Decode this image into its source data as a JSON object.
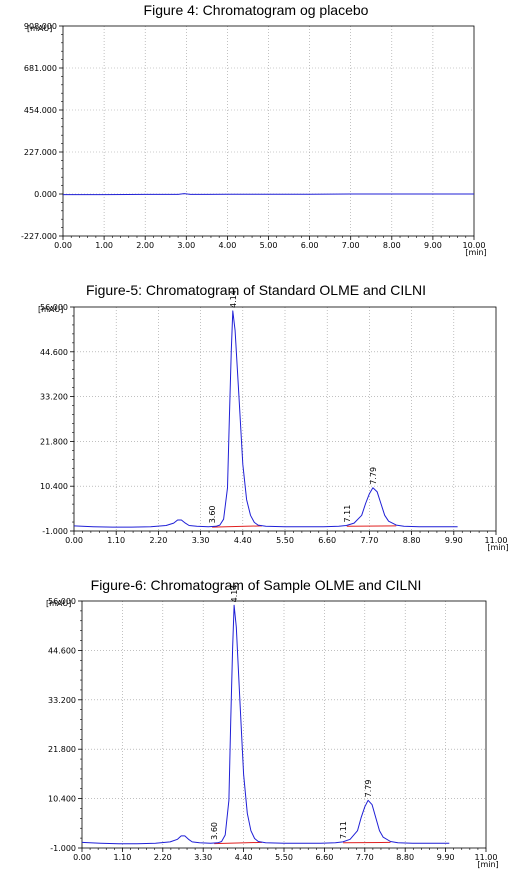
{
  "chart_data": [
    {
      "type": "line",
      "title": "Figure 4: Chromatogram og placebo",
      "y_unit": "[mAU]",
      "x_unit": "[min]",
      "ylim": [
        -227.0,
        908.0
      ],
      "xlim": [
        0.0,
        10.0
      ],
      "yticks": [
        "908.000",
        "681.000",
        "454.000",
        "227.000",
        "0.000",
        "-227.000"
      ],
      "yticks_values": [
        908,
        681,
        454,
        227,
        0,
        -227
      ],
      "xticks": [
        "0.00",
        "1.00",
        "2.00",
        "3.00",
        "4.00",
        "5.00",
        "6.00",
        "7.00",
        "8.00",
        "9.00",
        "10.00"
      ],
      "xticks_values": [
        0,
        1,
        2,
        3,
        4,
        5,
        6,
        7,
        8,
        9,
        10
      ],
      "grid": true,
      "series": [
        {
          "color": "#1f1fd6",
          "x": [
            0.0,
            1.0,
            2.0,
            2.8,
            2.95,
            3.1,
            3.5,
            4.0,
            5.0,
            6.0,
            7.0,
            8.0,
            9.0,
            10.0
          ],
          "y": [
            -3,
            -3,
            -2,
            -2,
            2,
            -2,
            -2,
            -1,
            -1,
            -1,
            0,
            0,
            0,
            0
          ]
        }
      ],
      "peaks": []
    },
    {
      "type": "line",
      "title": "Figure-5: Chromatogram of Standard OLME and CILNI",
      "y_unit": "[mAU]",
      "x_unit": "[min]",
      "ylim": [
        -1.0,
        56.0
      ],
      "xlim": [
        0.0,
        11.0
      ],
      "yticks": [
        "56.000",
        "44.600",
        "33.200",
        "21.800",
        "10.400",
        "-1.000"
      ],
      "yticks_values": [
        56,
        44.6,
        33.2,
        21.8,
        10.4,
        -1.0
      ],
      "xticks": [
        "0.00",
        "1.10",
        "2.20",
        "3.30",
        "4.40",
        "5.50",
        "6.60",
        "7.70",
        "8.80",
        "9.90",
        "11.00"
      ],
      "xticks_values": [
        0,
        1.1,
        2.2,
        3.3,
        4.4,
        5.5,
        6.6,
        7.7,
        8.8,
        9.9,
        11
      ],
      "grid": true,
      "series": [
        {
          "color": "#1f1fd6",
          "x": [
            0.0,
            0.5,
            1.0,
            1.5,
            2.0,
            2.4,
            2.6,
            2.7,
            2.8,
            2.9,
            3.0,
            3.2,
            3.5,
            3.7,
            3.8,
            3.9,
            4.0,
            4.05,
            4.1,
            4.14,
            4.2,
            4.3,
            4.4,
            4.5,
            4.6,
            4.7,
            4.8,
            5.0,
            5.5,
            6.0,
            6.5,
            6.9,
            7.1,
            7.3,
            7.5,
            7.6,
            7.7,
            7.79,
            7.9,
            8.0,
            8.1,
            8.2,
            8.4,
            8.6,
            9.0,
            9.5,
            10.0
          ],
          "y": [
            0.3,
            0.1,
            0.0,
            0.0,
            0.1,
            0.4,
            1.0,
            1.8,
            1.8,
            1.0,
            0.4,
            0.2,
            0.1,
            0.2,
            0.5,
            2.0,
            10.0,
            28.0,
            45.0,
            55.0,
            50.0,
            33.0,
            16.0,
            7.0,
            3.0,
            1.2,
            0.5,
            0.2,
            0.1,
            0.1,
            0.1,
            0.2,
            0.4,
            1.0,
            3.0,
            6.0,
            8.5,
            10.0,
            9.0,
            6.0,
            3.0,
            1.5,
            0.5,
            0.2,
            0.1,
            0.1,
            0.1
          ]
        }
      ],
      "baselines": [
        {
          "color": "#e02020",
          "x": [
            3.6,
            4.9
          ],
          "y": [
            0.0,
            0.3
          ]
        },
        {
          "color": "#e02020",
          "x": [
            7.11,
            8.4
          ],
          "y": [
            0.2,
            0.3
          ]
        }
      ],
      "peaks": [
        {
          "label": "4.14",
          "x": 4.14,
          "y": 55.0
        },
        {
          "label": "7.79",
          "x": 7.79,
          "y": 10.0
        },
        {
          "label": "3.60",
          "x": 3.6,
          "y": 0.2
        },
        {
          "label": "7.11",
          "x": 7.11,
          "y": 0.4
        }
      ]
    },
    {
      "type": "line",
      "title": "Figure-6: Chromatogram of Sample OLME and CILNI",
      "y_unit": "[mAU]",
      "x_unit": "[min]",
      "ylim": [
        -1.0,
        56.0
      ],
      "xlim": [
        0.0,
        11.0
      ],
      "yticks": [
        "56.000",
        "44.600",
        "33.200",
        "21.800",
        "10.400",
        "-1.000"
      ],
      "yticks_values": [
        56,
        44.6,
        33.2,
        21.8,
        10.4,
        -1.0
      ],
      "xticks": [
        "0.00",
        "1.10",
        "2.20",
        "3.30",
        "4.40",
        "5.50",
        "6.60",
        "7.70",
        "8.80",
        "9.90",
        "11.00"
      ],
      "xticks_values": [
        0,
        1.1,
        2.2,
        3.3,
        4.4,
        5.5,
        6.6,
        7.7,
        8.8,
        9.9,
        11
      ],
      "grid": true,
      "series": [
        {
          "color": "#1f1fd6",
          "x": [
            0.0,
            0.5,
            1.0,
            1.5,
            2.0,
            2.4,
            2.6,
            2.7,
            2.8,
            2.9,
            3.0,
            3.2,
            3.5,
            3.7,
            3.8,
            3.9,
            4.0,
            4.05,
            4.1,
            4.14,
            4.2,
            4.3,
            4.4,
            4.5,
            4.6,
            4.7,
            4.8,
            5.0,
            5.5,
            6.0,
            6.5,
            6.9,
            7.1,
            7.3,
            7.5,
            7.6,
            7.7,
            7.79,
            7.9,
            8.0,
            8.1,
            8.2,
            8.4,
            8.6,
            9.0,
            9.5,
            10.0
          ],
          "y": [
            0.3,
            0.1,
            0.0,
            0.0,
            0.1,
            0.4,
            1.0,
            1.8,
            1.8,
            1.0,
            0.4,
            0.2,
            0.1,
            0.2,
            0.5,
            2.0,
            10.0,
            28.0,
            45.0,
            55.0,
            50.0,
            33.0,
            16.0,
            7.0,
            3.0,
            1.2,
            0.5,
            0.2,
            0.1,
            0.1,
            0.1,
            0.2,
            0.4,
            1.0,
            3.0,
            6.0,
            8.5,
            10.0,
            9.0,
            6.0,
            3.0,
            1.5,
            0.5,
            0.2,
            0.1,
            0.1,
            0.1
          ]
        }
      ],
      "baselines": [
        {
          "color": "#e02020",
          "x": [
            3.6,
            4.9
          ],
          "y": [
            0.0,
            0.3
          ]
        },
        {
          "color": "#e02020",
          "x": [
            7.11,
            8.4
          ],
          "y": [
            0.2,
            0.3
          ]
        }
      ],
      "peaks": [
        {
          "label": "4.14",
          "x": 4.14,
          "y": 55.0
        },
        {
          "label": "7.79",
          "x": 7.79,
          "y": 10.0
        },
        {
          "label": "3.60",
          "x": 3.6,
          "y": 0.2
        },
        {
          "label": "7.11",
          "x": 7.11,
          "y": 0.4
        }
      ]
    }
  ]
}
